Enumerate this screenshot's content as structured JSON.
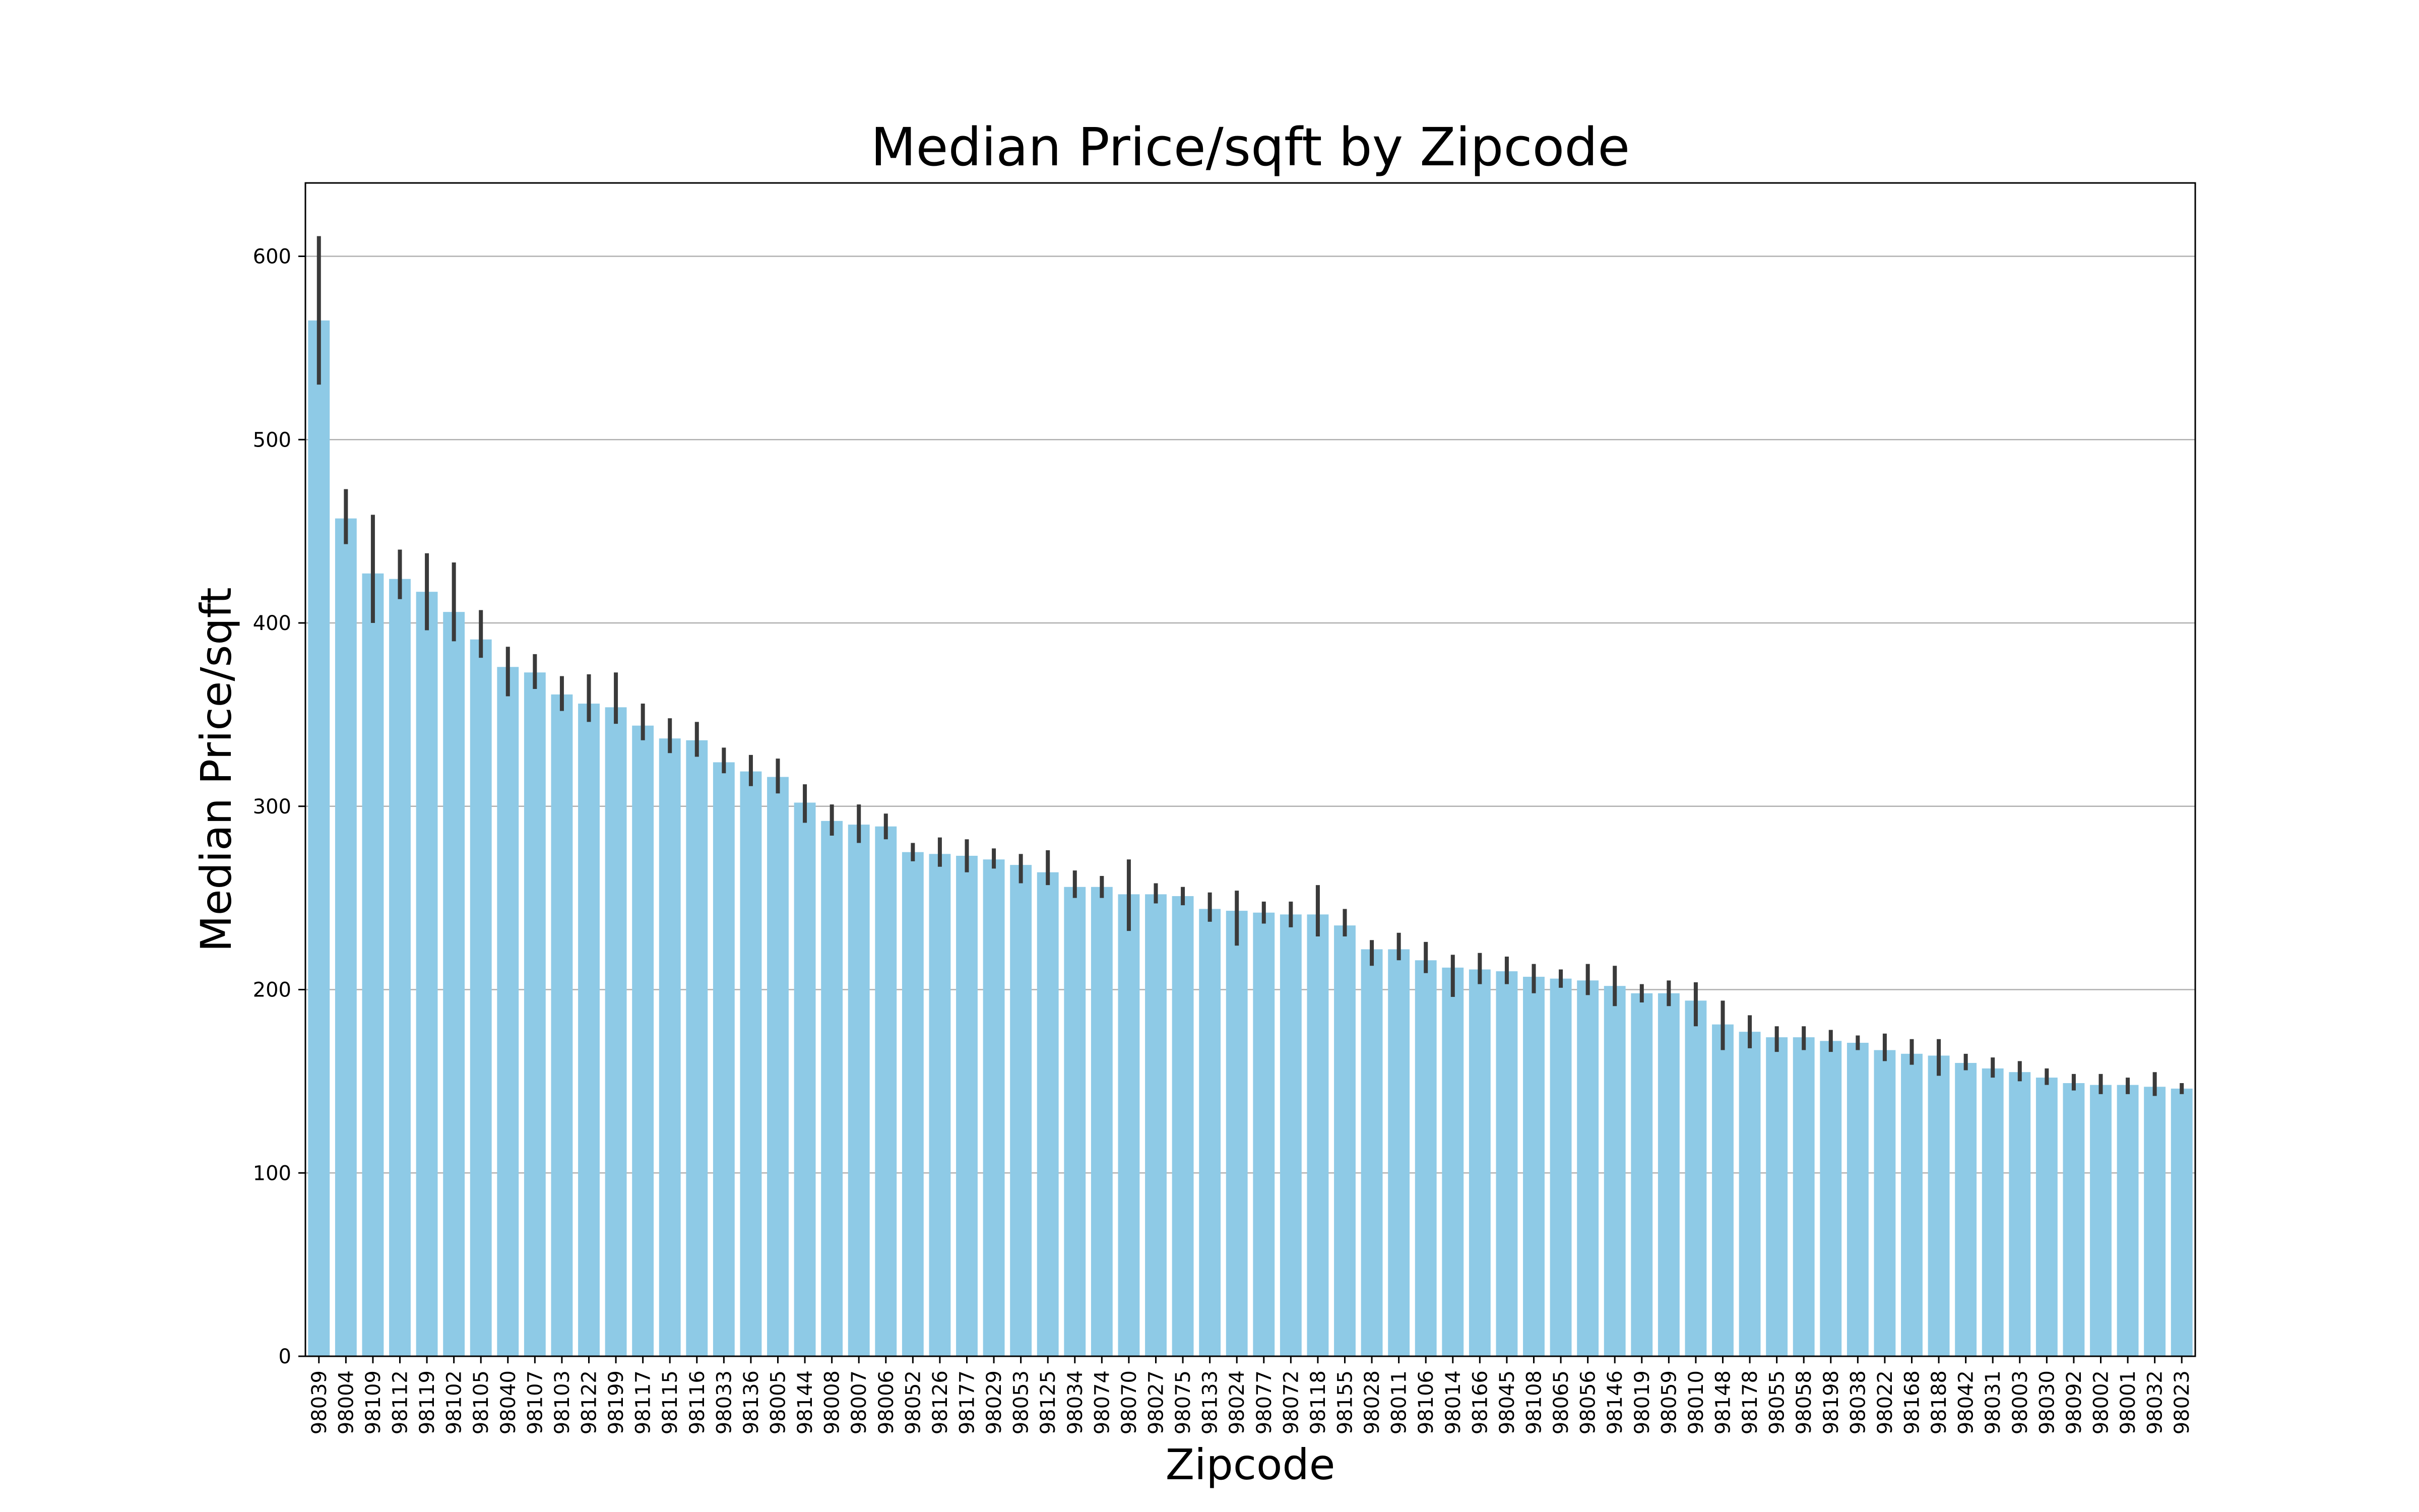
{
  "chart_data": {
    "type": "bar",
    "title": "Median Price/sqft by Zipcode",
    "xlabel": "Zipcode",
    "ylabel": "Median Price/sqft",
    "ylim": [
      0,
      640
    ],
    "yticks": [
      0,
      100,
      200,
      300,
      400,
      500,
      600
    ],
    "grid": "horizontal",
    "bar_color": "#8ecae6",
    "error_color": "#3a3a3a",
    "grid_color": "#b0b0b0",
    "categories": [
      "98039",
      "98004",
      "98109",
      "98112",
      "98119",
      "98102",
      "98105",
      "98040",
      "98107",
      "98103",
      "98122",
      "98199",
      "98117",
      "98115",
      "98116",
      "98033",
      "98136",
      "98005",
      "98144",
      "98008",
      "98007",
      "98006",
      "98052",
      "98126",
      "98177",
      "98029",
      "98053",
      "98125",
      "98034",
      "98074",
      "98070",
      "98027",
      "98075",
      "98133",
      "98024",
      "98077",
      "98072",
      "98118",
      "98155",
      "98028",
      "98011",
      "98106",
      "98014",
      "98166",
      "98045",
      "98108",
      "98065",
      "98056",
      "98146",
      "98019",
      "98059",
      "98010",
      "98148",
      "98178",
      "98055",
      "98058",
      "98198",
      "98038",
      "98022",
      "98168",
      "98188",
      "98042",
      "98031",
      "98003",
      "98030",
      "98092",
      "98002",
      "98001",
      "98032",
      "98023"
    ],
    "values": [
      565,
      457,
      427,
      424,
      417,
      406,
      391,
      376,
      373,
      361,
      356,
      354,
      344,
      337,
      336,
      324,
      319,
      316,
      302,
      292,
      290,
      289,
      275,
      274,
      273,
      271,
      268,
      264,
      256,
      256,
      252,
      252,
      251,
      244,
      243,
      242,
      241,
      241,
      235,
      222,
      222,
      216,
      212,
      211,
      210,
      207,
      206,
      205,
      202,
      198,
      198,
      194,
      181,
      177,
      174,
      174,
      172,
      171,
      167,
      165,
      164,
      160,
      157,
      155,
      152,
      149,
      148,
      148,
      147,
      146
    ],
    "error_low": [
      530,
      443,
      400,
      413,
      396,
      390,
      381,
      360,
      364,
      352,
      346,
      345,
      336,
      329,
      327,
      318,
      311,
      307,
      291,
      284,
      280,
      282,
      270,
      267,
      264,
      266,
      258,
      257,
      250,
      250,
      232,
      247,
      246,
      237,
      224,
      236,
      234,
      229,
      229,
      213,
      216,
      209,
      196,
      203,
      203,
      198,
      201,
      197,
      191,
      193,
      191,
      180,
      167,
      168,
      166,
      167,
      166,
      167,
      161,
      159,
      153,
      156,
      152,
      150,
      148,
      145,
      143,
      143,
      142,
      143
    ],
    "error_high": [
      611,
      473,
      459,
      440,
      438,
      433,
      407,
      387,
      383,
      371,
      372,
      373,
      356,
      348,
      346,
      332,
      328,
      326,
      312,
      301,
      301,
      296,
      280,
      283,
      282,
      277,
      274,
      276,
      265,
      262,
      271,
      258,
      256,
      253,
      254,
      248,
      248,
      257,
      244,
      227,
      231,
      226,
      219,
      220,
      218,
      214,
      211,
      214,
      213,
      203,
      205,
      204,
      194,
      186,
      180,
      180,
      178,
      175,
      176,
      173,
      173,
      165,
      163,
      161,
      157,
      154,
      154,
      152,
      155,
      149
    ]
  }
}
